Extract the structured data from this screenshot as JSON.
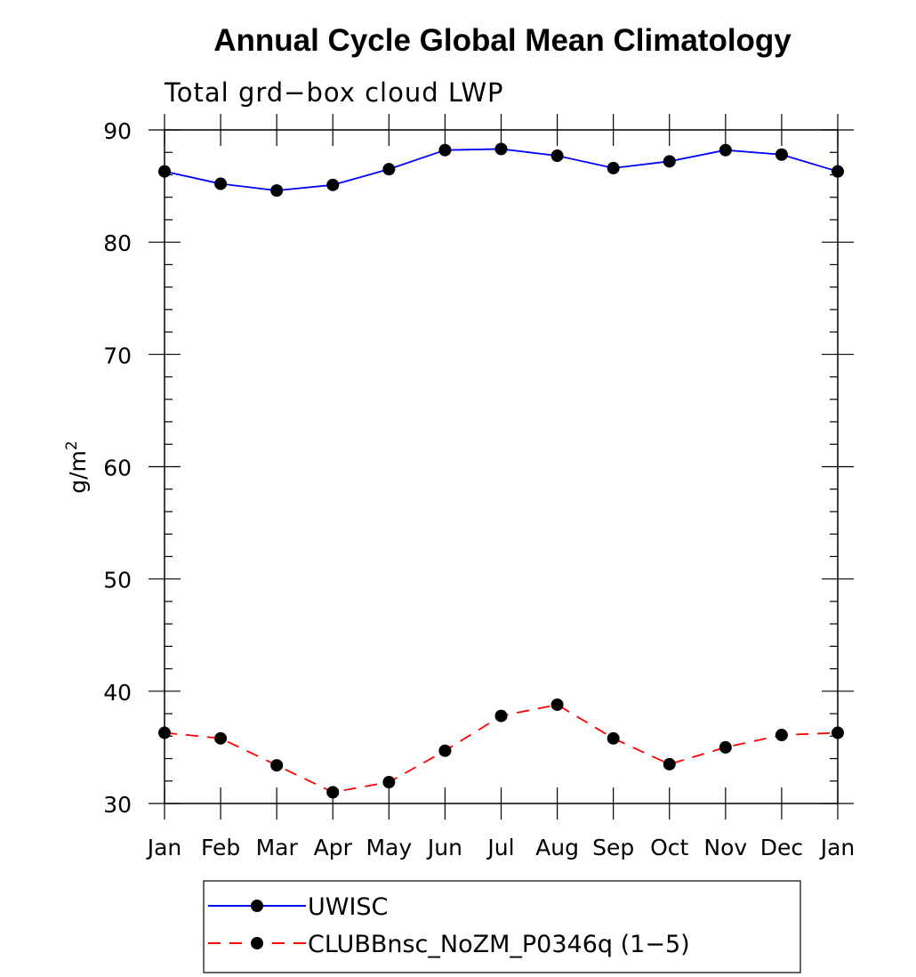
{
  "chart_data": {
    "type": "line",
    "title": "Annual Cycle Global Mean Climatology",
    "subtitle": "Total grd−box cloud LWP",
    "ylabel": "g/m",
    "ylabel_sup": "2",
    "ylim": [
      30,
      90
    ],
    "yticks": [
      30,
      40,
      50,
      60,
      70,
      80,
      90
    ],
    "categories": [
      "Jan",
      "Feb",
      "Mar",
      "Apr",
      "May",
      "Jun",
      "Jul",
      "Aug",
      "Sep",
      "Oct",
      "Nov",
      "Dec",
      "Jan"
    ],
    "series": [
      {
        "name": "UWISC",
        "color": "#0000ff",
        "dash": "solid",
        "values": [
          86.3,
          85.2,
          84.6,
          85.1,
          86.5,
          88.2,
          88.3,
          87.7,
          86.6,
          87.2,
          88.2,
          87.8,
          86.3
        ]
      },
      {
        "name": "CLUBBnsc_NoZM_P0346q (1−5)",
        "color": "#ff0000",
        "dash": "dashed",
        "values": [
          36.3,
          35.8,
          33.4,
          31.0,
          31.9,
          34.7,
          37.8,
          38.8,
          35.8,
          33.5,
          35.0,
          36.1,
          36.3
        ]
      }
    ],
    "grid": false,
    "legend_position": "bottom"
  }
}
